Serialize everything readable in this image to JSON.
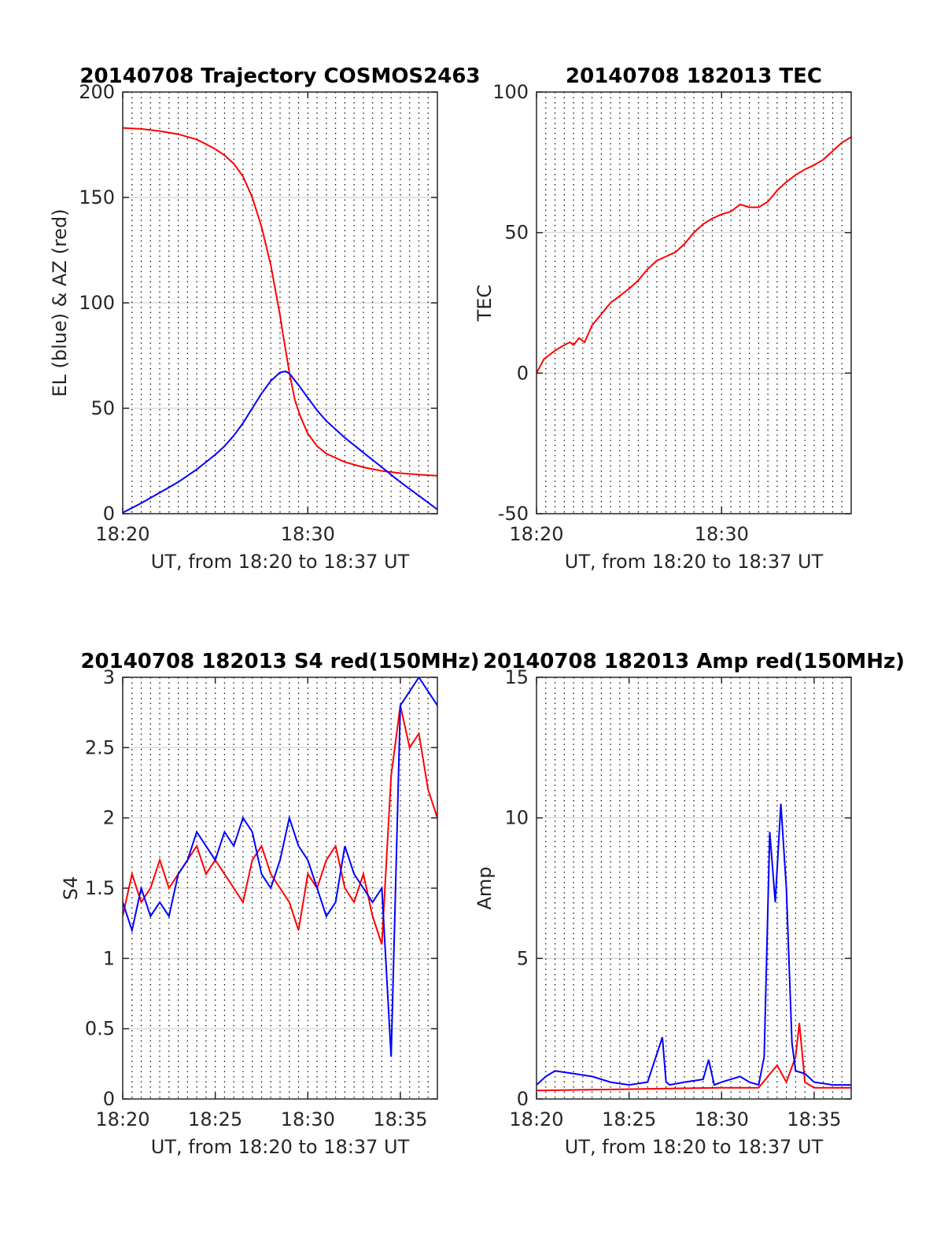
{
  "figure": {
    "background": "#ffffff",
    "colors": {
      "red": "#ff0000",
      "blue": "#0000ff",
      "grid": "#dcdcdc",
      "axis": "#262626"
    }
  },
  "chart_data": [
    {
      "type": "line",
      "title": "20140708 Trajectory COSMOS2463",
      "xlabel": "UT, from 18:20 to 18:37 UT",
      "ylabel": "EL (blue) & AZ (red)",
      "xlim": [
        0,
        17
      ],
      "ylim": [
        0,
        200
      ],
      "yticks": [
        0,
        50,
        100,
        150,
        200
      ],
      "xticks": [
        0,
        10
      ],
      "xtick_labels": [
        "18:20",
        "18:30"
      ],
      "grid": true,
      "series": [
        {
          "color": "red",
          "x": [
            0,
            1,
            2,
            3,
            4,
            5,
            5.5,
            6,
            6.5,
            7,
            7.5,
            8,
            8.5,
            8.7,
            9,
            9.3,
            9.6,
            10,
            10.5,
            11,
            12,
            13,
            14,
            15,
            16,
            17
          ],
          "y": [
            183,
            182.5,
            181.5,
            180,
            177.5,
            173,
            170,
            166,
            160,
            150,
            136,
            118,
            94,
            83,
            67,
            54,
            46,
            38,
            32,
            28.5,
            24.5,
            22,
            20.3,
            19.2,
            18.5,
            18
          ]
        },
        {
          "color": "blue",
          "x": [
            0,
            1,
            2,
            3,
            4,
            5,
            5.5,
            6,
            6.5,
            7,
            7.5,
            8,
            8.5,
            8.8,
            9,
            9.5,
            10,
            10.5,
            11,
            12,
            13,
            14,
            15,
            16,
            17
          ],
          "y": [
            0.5,
            5,
            10,
            15,
            21,
            28,
            32,
            37,
            43,
            50,
            57,
            63,
            67,
            67.5,
            66.5,
            61,
            55,
            49,
            44,
            36,
            29,
            22,
            15,
            8.5,
            2
          ]
        }
      ]
    },
    {
      "type": "line",
      "title": "20140708 182013 TEC",
      "xlabel": "UT, from 18:20 to 18:37 UT",
      "ylabel": "TEC",
      "xlim": [
        0,
        17
      ],
      "ylim": [
        -50,
        100
      ],
      "yticks": [
        -50,
        0,
        50,
        100
      ],
      "xticks": [
        0,
        10
      ],
      "xtick_labels": [
        "18:20",
        "18:30"
      ],
      "grid": true,
      "series": [
        {
          "color": "red",
          "x": [
            0,
            0.4,
            1,
            1.5,
            1.8,
            2,
            2.3,
            2.6,
            3,
            3.5,
            4,
            4.5,
            5,
            5.5,
            6,
            6.5,
            7,
            7.5,
            8,
            8.5,
            9,
            9.5,
            10,
            10.5,
            11,
            11.5,
            12,
            12.5,
            13,
            13.5,
            14,
            14.5,
            15,
            15.5,
            16,
            16.5,
            17
          ],
          "y": [
            0,
            5,
            8,
            10,
            11,
            10,
            12.5,
            11,
            17,
            21,
            25,
            27.5,
            30,
            33,
            37,
            40,
            41.5,
            43,
            46,
            50,
            53,
            55,
            56.5,
            57.5,
            60,
            59,
            59,
            61,
            65,
            68,
            70.5,
            72.5,
            74,
            76,
            79,
            82,
            84
          ]
        }
      ]
    },
    {
      "type": "line",
      "title": "20140708 182013 S4 red(150MHz)",
      "xlabel": "UT, from 18:20 to 18:37 UT",
      "ylabel": "S4",
      "xlim": [
        0,
        17
      ],
      "ylim": [
        0,
        3
      ],
      "yticks": [
        0,
        0.5,
        1,
        1.5,
        2,
        2.5,
        3
      ],
      "xticks": [
        0,
        5,
        10,
        15
      ],
      "xtick_labels": [
        "18:20",
        "18:25",
        "18:30",
        "18:35"
      ],
      "grid": true,
      "series": [
        {
          "color": "red",
          "x": [
            0,
            0.5,
            1,
            1.5,
            2,
            2.5,
            3,
            3.5,
            4,
            4.5,
            5,
            5.5,
            6,
            6.5,
            7,
            7.5,
            8,
            8.5,
            9,
            9.5,
            10,
            10.5,
            11,
            11.5,
            12,
            12.5,
            13,
            13.5,
            14,
            14.5,
            15,
            15.5,
            16,
            16.5,
            17
          ],
          "y": [
            1.3,
            1.6,
            1.4,
            1.5,
            1.7,
            1.5,
            1.6,
            1.7,
            1.8,
            1.6,
            1.7,
            1.6,
            1.5,
            1.4,
            1.7,
            1.8,
            1.6,
            1.5,
            1.4,
            1.2,
            1.6,
            1.5,
            1.7,
            1.8,
            1.5,
            1.4,
            1.6,
            1.3,
            1.1,
            2.3,
            2.8,
            2.5,
            2.6,
            2.2,
            2.0
          ]
        },
        {
          "color": "blue",
          "x": [
            0,
            0.5,
            1,
            1.5,
            2,
            2.5,
            3,
            3.5,
            4,
            4.5,
            5,
            5.5,
            6,
            6.5,
            7,
            7.5,
            8,
            8.5,
            9,
            9.5,
            10,
            10.5,
            11,
            11.5,
            12,
            12.5,
            13,
            13.5,
            14,
            14.5,
            15,
            15.5,
            16,
            16.5,
            17
          ],
          "y": [
            1.4,
            1.2,
            1.5,
            1.3,
            1.4,
            1.3,
            1.6,
            1.7,
            1.9,
            1.8,
            1.7,
            1.9,
            1.8,
            2.0,
            1.9,
            1.6,
            1.5,
            1.7,
            2.0,
            1.8,
            1.7,
            1.5,
            1.3,
            1.4,
            1.8,
            1.6,
            1.5,
            1.4,
            1.5,
            0.3,
            2.8,
            2.9,
            3.0,
            2.9,
            2.8
          ]
        }
      ]
    },
    {
      "type": "line",
      "title": "20140708 182013 Amp red(150MHz)",
      "xlabel": "UT, from 18:20 to 18:37 UT",
      "ylabel": "Amp",
      "xlim": [
        0,
        17
      ],
      "ylim": [
        0,
        15
      ],
      "yticks": [
        0,
        5,
        10,
        15
      ],
      "xticks": [
        0,
        5,
        10,
        15
      ],
      "xtick_labels": [
        "18:20",
        "18:25",
        "18:30",
        "18:35"
      ],
      "grid": true,
      "series": [
        {
          "color": "red",
          "x": [
            0,
            10,
            12,
            12.5,
            13,
            13.5,
            14,
            14.2,
            14.5,
            15,
            16,
            17
          ],
          "y": [
            0.3,
            0.4,
            0.4,
            0.8,
            1.2,
            0.6,
            1.5,
            2.7,
            0.6,
            0.4,
            0.4,
            0.4
          ]
        },
        {
          "color": "blue",
          "x": [
            0,
            0.5,
            1,
            2,
            3,
            4,
            5,
            6,
            6.8,
            7,
            7.2,
            8,
            9,
            9.3,
            9.6,
            10,
            11,
            11.5,
            12,
            12.3,
            12.6,
            12.9,
            13.2,
            13.5,
            13.8,
            14,
            14.5,
            15,
            16,
            17
          ],
          "y": [
            0.5,
            0.8,
            1.0,
            0.9,
            0.8,
            0.6,
            0.5,
            0.6,
            2.2,
            0.6,
            0.5,
            0.6,
            0.7,
            1.4,
            0.5,
            0.6,
            0.8,
            0.6,
            0.5,
            1.5,
            9.5,
            7.0,
            10.5,
            7.5,
            2.0,
            1.0,
            0.9,
            0.6,
            0.5,
            0.5
          ]
        }
      ]
    }
  ]
}
